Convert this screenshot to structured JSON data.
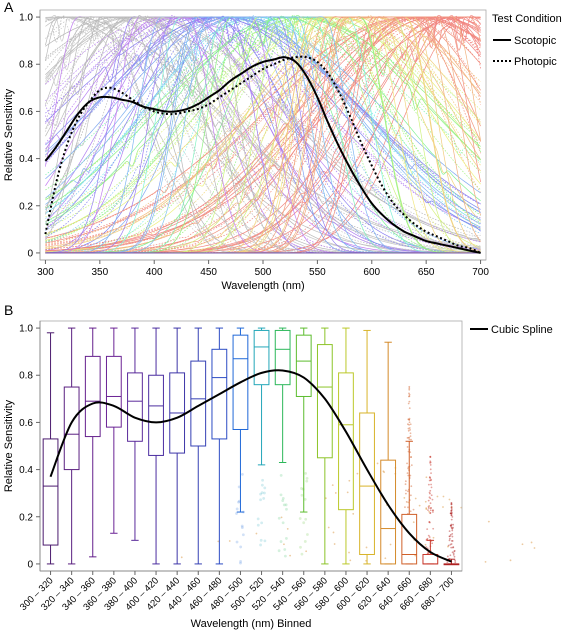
{
  "chart_data": [
    {
      "panel": "A",
      "type": "line",
      "xlabel": "Wavelength (nm)",
      "ylabel": "Relative Sensitivity",
      "xlim": [
        295,
        705
      ],
      "ylim": [
        -0.03,
        1.03
      ],
      "x_ticks": [
        300,
        350,
        400,
        450,
        500,
        550,
        600,
        650,
        700
      ],
      "y_ticks": [
        0,
        0.2,
        0.4,
        0.6,
        0.8,
        1.0
      ],
      "y_tick_labels": [
        "0",
        "0.2",
        "0.4",
        "0.6",
        "0.8",
        "1.0"
      ],
      "legend": {
        "title": "Test Condition",
        "position": "right"
      },
      "grid": false,
      "series": [
        {
          "name": "Scotopic",
          "style": "solid",
          "color": "#000000",
          "x": [
            300,
            310,
            320,
            330,
            340,
            350,
            360,
            370,
            380,
            390,
            400,
            410,
            420,
            430,
            440,
            450,
            460,
            470,
            480,
            490,
            500,
            510,
            520,
            530,
            540,
            550,
            560,
            570,
            580,
            590,
            600,
            610,
            620,
            630,
            640,
            650,
            660,
            670,
            680,
            690,
            700
          ],
          "y": [
            0.39,
            0.45,
            0.52,
            0.59,
            0.64,
            0.66,
            0.66,
            0.65,
            0.64,
            0.62,
            0.61,
            0.6,
            0.6,
            0.61,
            0.63,
            0.66,
            0.69,
            0.73,
            0.76,
            0.79,
            0.81,
            0.82,
            0.83,
            0.81,
            0.75,
            0.66,
            0.55,
            0.45,
            0.36,
            0.28,
            0.21,
            0.16,
            0.12,
            0.09,
            0.07,
            0.05,
            0.04,
            0.03,
            0.02,
            0.01,
            0.0
          ]
        },
        {
          "name": "Photopic",
          "style": "dotted",
          "color": "#000000",
          "x": [
            300,
            310,
            320,
            330,
            340,
            350,
            360,
            370,
            380,
            390,
            400,
            410,
            420,
            430,
            440,
            450,
            460,
            470,
            480,
            490,
            500,
            510,
            520,
            530,
            540,
            550,
            560,
            570,
            580,
            590,
            600,
            610,
            620,
            630,
            640,
            650,
            660,
            670,
            680,
            690,
            700
          ],
          "y": [
            0.08,
            0.3,
            0.46,
            0.57,
            0.64,
            0.69,
            0.7,
            0.68,
            0.65,
            0.62,
            0.6,
            0.59,
            0.59,
            0.6,
            0.61,
            0.63,
            0.66,
            0.69,
            0.72,
            0.75,
            0.78,
            0.8,
            0.82,
            0.83,
            0.83,
            0.81,
            0.76,
            0.68,
            0.58,
            0.47,
            0.37,
            0.28,
            0.21,
            0.16,
            0.12,
            0.09,
            0.07,
            0.05,
            0.03,
            0.02,
            0.0
          ]
        }
      ],
      "background_spectra": "many faint individual sensitivity curves colored by peak wavelength (grey/violet to red)"
    },
    {
      "panel": "B",
      "type": "box",
      "xlabel": "Wavelength (nm) Binned",
      "ylabel": "Relative Sensitivity",
      "ylim": [
        -0.03,
        1.03
      ],
      "y_ticks": [
        0,
        0.2,
        0.4,
        0.6,
        0.8,
        1.0
      ],
      "y_tick_labels": [
        "0",
        "0.2",
        "0.4",
        "0.6",
        "0.8",
        "1.0"
      ],
      "legend": {
        "position": "right"
      },
      "grid": false,
      "categories": [
        "300 – 320",
        "320 – 340",
        "340 – 360",
        "360 – 380",
        "380 – 400",
        "400 – 420",
        "420 – 440",
        "440 – 460",
        "460 – 480",
        "480 – 500",
        "500 – 520",
        "520 – 540",
        "540 – 560",
        "560 – 580",
        "580 – 600",
        "600 – 620",
        "620 – 640",
        "640 – 660",
        "660 – 680",
        "680 – 700"
      ],
      "box_colors": [
        "#4b1a6e",
        "#5a1f80",
        "#641f8c",
        "#6a2294",
        "#5a2a9a",
        "#4a2ca0",
        "#3d35a8",
        "#3540b4",
        "#2c4cc4",
        "#2068d8",
        "#23a6b8",
        "#2cb85a",
        "#5cbc2e",
        "#8cc428",
        "#bcc82a",
        "#d8b42a",
        "#d48a2a",
        "#d0602a",
        "#c8362a",
        "#b02222"
      ],
      "boxes": [
        {
          "min": 0.0,
          "q1": 0.08,
          "median": 0.33,
          "q3": 0.53,
          "max": 0.98
        },
        {
          "min": 0.0,
          "q1": 0.4,
          "median": 0.55,
          "q3": 0.75,
          "max": 1.0
        },
        {
          "min": 0.03,
          "q1": 0.54,
          "median": 0.69,
          "q3": 0.88,
          "max": 1.0
        },
        {
          "min": 0.13,
          "q1": 0.58,
          "median": 0.71,
          "q3": 0.88,
          "max": 1.0
        },
        {
          "min": 0.1,
          "q1": 0.52,
          "median": 0.69,
          "q3": 0.81,
          "max": 1.0
        },
        {
          "min": 0.0,
          "q1": 0.46,
          "median": 0.67,
          "q3": 0.8,
          "max": 1.0
        },
        {
          "min": 0.0,
          "q1": 0.47,
          "median": 0.64,
          "q3": 0.81,
          "max": 1.0
        },
        {
          "min": 0.0,
          "q1": 0.5,
          "median": 0.7,
          "q3": 0.86,
          "max": 1.0
        },
        {
          "min": 0.0,
          "q1": 0.53,
          "median": 0.79,
          "q3": 0.91,
          "max": 1.0
        },
        {
          "min": 0.22,
          "q1": 0.57,
          "median": 0.87,
          "q3": 0.97,
          "max": 1.0
        },
        {
          "min": 0.42,
          "q1": 0.76,
          "median": 0.92,
          "q3": 0.99,
          "max": 1.0
        },
        {
          "min": 0.43,
          "q1": 0.76,
          "median": 0.91,
          "q3": 0.99,
          "max": 1.0
        },
        {
          "min": 0.22,
          "q1": 0.71,
          "median": 0.86,
          "q3": 0.97,
          "max": 1.0
        },
        {
          "min": 0.0,
          "q1": 0.45,
          "median": 0.75,
          "q3": 0.93,
          "max": 1.0
        },
        {
          "min": 0.0,
          "q1": 0.23,
          "median": 0.59,
          "q3": 0.81,
          "max": 1.0
        },
        {
          "min": 0.0,
          "q1": 0.04,
          "median": 0.33,
          "q3": 0.64,
          "max": 0.99
        },
        {
          "min": 0.0,
          "q1": 0.0,
          "median": 0.15,
          "q3": 0.44,
          "max": 0.94
        },
        {
          "min": 0.0,
          "q1": 0.0,
          "median": 0.04,
          "q3": 0.21,
          "max": 0.52
        },
        {
          "min": 0.0,
          "q1": 0.0,
          "median": 0.0,
          "q3": 0.04,
          "max": 0.1
        },
        {
          "min": 0.0,
          "q1": 0.0,
          "median": 0.0,
          "q3": 0.0,
          "max": 0.02
        }
      ],
      "series": [
        {
          "name": "Cubic Spline",
          "style": "solid",
          "color": "#000000",
          "y": [
            0.37,
            0.6,
            0.68,
            0.67,
            0.62,
            0.6,
            0.62,
            0.67,
            0.72,
            0.77,
            0.81,
            0.82,
            0.79,
            0.7,
            0.56,
            0.4,
            0.25,
            0.13,
            0.05,
            0.01
          ]
        }
      ]
    }
  ]
}
